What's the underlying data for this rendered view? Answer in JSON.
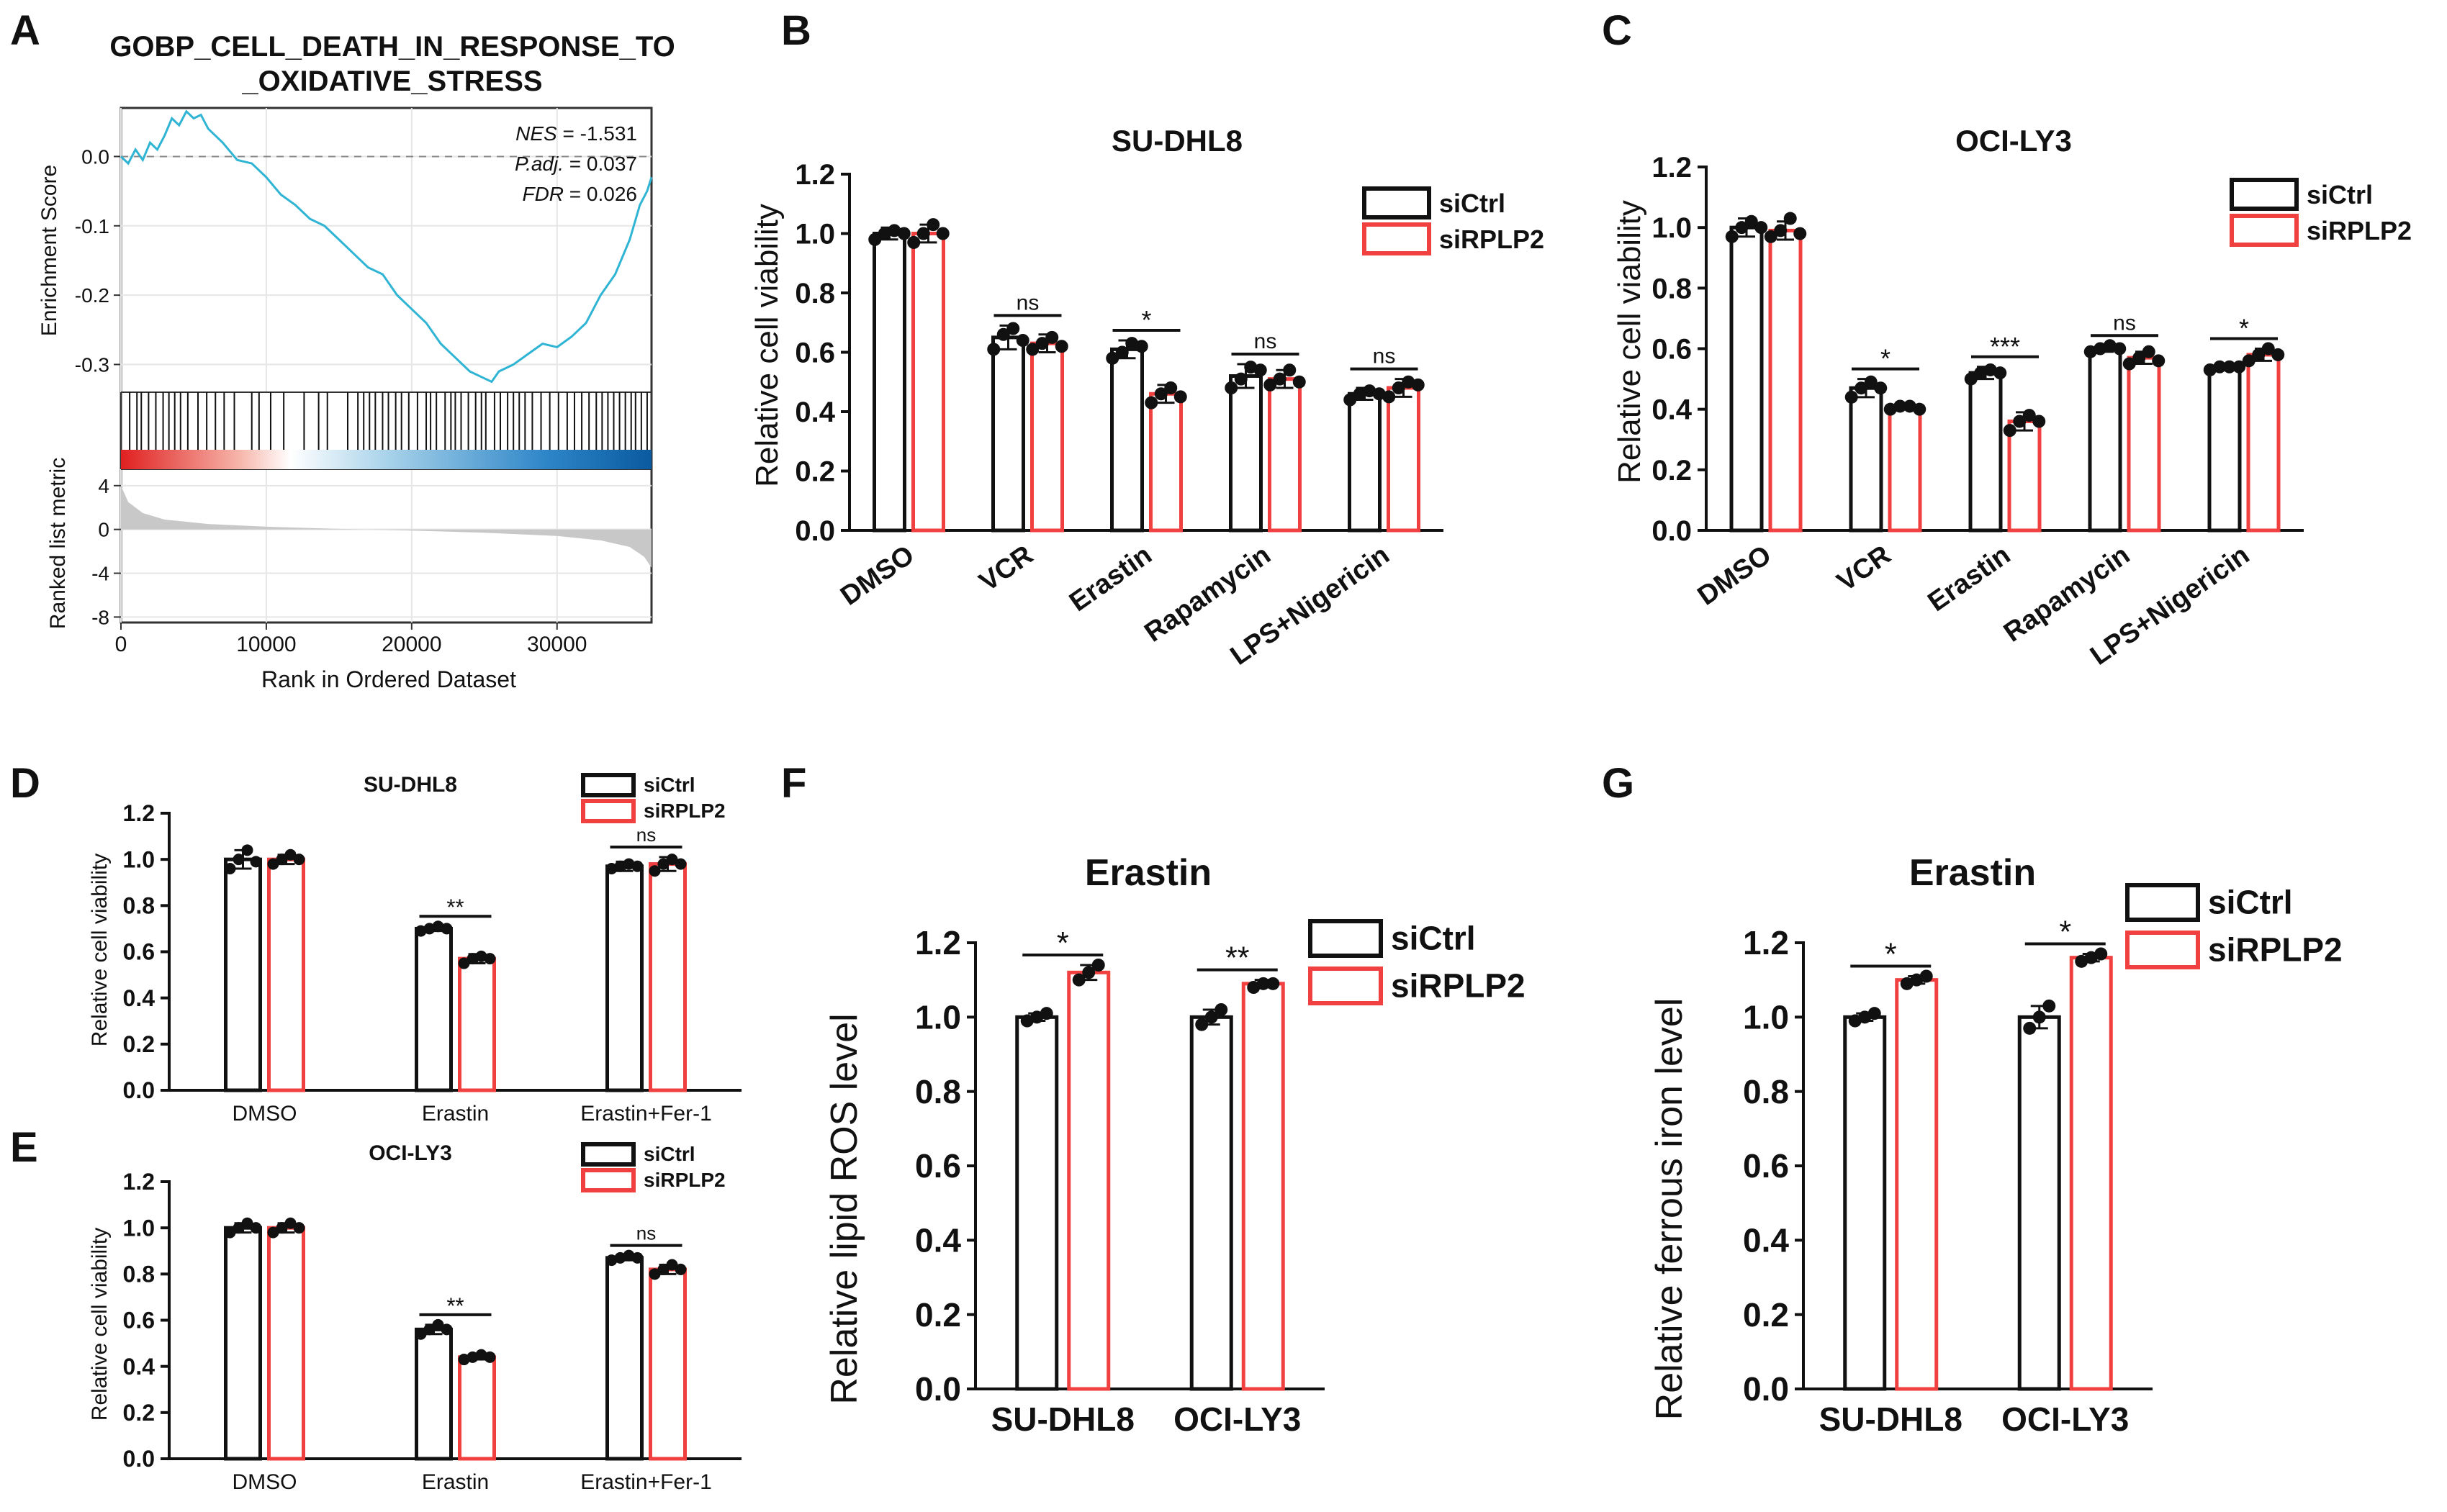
{
  "figure": {
    "panel_labels": [
      "A",
      "B",
      "C",
      "D",
      "E",
      "F",
      "G"
    ]
  },
  "chart_data": [
    {
      "panel": "A",
      "type": "line",
      "title": "GOBP_CELL_DEATH_IN_RESPONSE_TO _OXIDATIVE_STRESS",
      "title_lines": [
        "GOBP_CELL_DEATH_IN_RESPONSE_TO",
        "_OXIDATIVE_STRESS"
      ],
      "ylabel": "Enrichment Score",
      "ylabel_bottom": "Ranked list metric",
      "xlabel": "Rank in Ordered Dataset",
      "stats": [
        {
          "label": "NES",
          "value": "-1.531"
        },
        {
          "label": "P.adj.",
          "value": "0.037"
        },
        {
          "label": "FDR",
          "value": "0.026"
        }
      ],
      "es_yticks": [
        "0.0",
        "-0.1",
        "-0.2",
        "-0.3"
      ],
      "es_ylim": [
        -0.34,
        0.07
      ],
      "metric_yticks": [
        "4",
        "0",
        "-4",
        "-8"
      ],
      "metric_ylim": [
        -8.5,
        5.5
      ],
      "xticks": [
        "0",
        "10000",
        "20000",
        "30000"
      ],
      "xlim": [
        0,
        36500
      ],
      "running_es": {
        "x": [
          0,
          500,
          1000,
          1500,
          2000,
          2500,
          3000,
          3500,
          4000,
          4500,
          5000,
          5500,
          6000,
          7000,
          8000,
          9000,
          10000,
          11000,
          12000,
          13000,
          14000,
          15000,
          16000,
          17000,
          18000,
          19000,
          20000,
          21000,
          22000,
          23000,
          24000,
          25000,
          25500,
          26000,
          27000,
          28000,
          29000,
          30000,
          31000,
          32000,
          33000,
          34000,
          35000,
          35700,
          36200,
          36500
        ],
        "y": [
          0.0,
          -0.01,
          0.01,
          -0.005,
          0.02,
          0.01,
          0.03,
          0.055,
          0.045,
          0.065,
          0.055,
          0.06,
          0.04,
          0.02,
          -0.005,
          -0.01,
          -0.03,
          -0.055,
          -0.07,
          -0.09,
          -0.1,
          -0.12,
          -0.14,
          -0.16,
          -0.17,
          -0.2,
          -0.22,
          -0.24,
          -0.27,
          -0.29,
          -0.31,
          -0.32,
          -0.325,
          -0.31,
          -0.3,
          -0.285,
          -0.27,
          -0.275,
          -0.26,
          -0.24,
          -0.2,
          -0.17,
          -0.12,
          -0.07,
          -0.05,
          -0.03
        ]
      },
      "hit_positions": [
        600,
        1100,
        1400,
        1900,
        2400,
        2900,
        3300,
        3700,
        4100,
        4600,
        5300,
        5900,
        6500,
        7100,
        7800,
        9000,
        9500,
        10300,
        11200,
        12600,
        13600,
        14200,
        15600,
        16300,
        16700,
        17100,
        17500,
        18000,
        18400,
        18900,
        19300,
        19800,
        20400,
        21000,
        21300,
        21700,
        22300,
        22700,
        23000,
        23400,
        23900,
        24400,
        24800,
        25100,
        25700,
        26100,
        26600,
        27000,
        27400,
        27800,
        28300,
        28900,
        29500,
        30100,
        30700,
        31200,
        31700,
        32200,
        32700,
        33100,
        33500,
        33900,
        34300,
        34700,
        35100,
        35400,
        35800,
        36200
      ],
      "metric_curve": {
        "x": [
          0,
          500,
          1500,
          3000,
          6000,
          10000,
          15000,
          20000,
          25000,
          30000,
          33000,
          35000,
          36000,
          36500
        ],
        "y": [
          4.0,
          2.5,
          1.5,
          0.9,
          0.5,
          0.25,
          0.05,
          -0.1,
          -0.3,
          -0.6,
          -1.0,
          -1.6,
          -2.5,
          -3.5
        ]
      }
    },
    {
      "panel": "B",
      "type": "bar",
      "title": "SU-DHL8",
      "ylabel": "Relative cell viability",
      "ylim": [
        0,
        1.2
      ],
      "yticks": [
        "0.0",
        "0.2",
        "0.4",
        "0.6",
        "0.8",
        "1.0",
        "1.2"
      ],
      "categories": [
        "DMSO",
        "VCR",
        "Erastin",
        "Rapamycin",
        "LPS+Nigericin"
      ],
      "series": [
        {
          "name": "siCtrl",
          "color": "#111111",
          "values": [
            1.0,
            0.65,
            0.61,
            0.52,
            0.46
          ],
          "errors": [
            0.02,
            0.04,
            0.03,
            0.04,
            0.02
          ],
          "points": [
            [
              0.98,
              1.0,
              1.01,
              1.0
            ],
            [
              0.61,
              0.66,
              0.68,
              0.64
            ],
            [
              0.58,
              0.6,
              0.63,
              0.62
            ],
            [
              0.48,
              0.51,
              0.55,
              0.54
            ],
            [
              0.44,
              0.46,
              0.47,
              0.46
            ]
          ]
        },
        {
          "name": "siRPLP2",
          "color": "#f04040",
          "values": [
            1.0,
            0.63,
            0.46,
            0.51,
            0.48
          ],
          "errors": [
            0.03,
            0.03,
            0.03,
            0.03,
            0.03
          ],
          "points": [
            [
              0.97,
              1.0,
              1.03,
              1.0
            ],
            [
              0.61,
              0.63,
              0.65,
              0.62
            ],
            [
              0.43,
              0.46,
              0.48,
              0.45
            ],
            [
              0.49,
              0.51,
              0.54,
              0.5
            ],
            [
              0.45,
              0.48,
              0.5,
              0.49
            ]
          ]
        }
      ],
      "annotations": [
        "",
        "ns",
        "*",
        "ns",
        "ns"
      ]
    },
    {
      "panel": "C",
      "type": "bar",
      "title": "OCI-LY3",
      "ylabel": "Relative cell viability",
      "ylim": [
        0,
        1.2
      ],
      "yticks": [
        "0.0",
        "0.2",
        "0.4",
        "0.6",
        "0.8",
        "1.0",
        "1.2"
      ],
      "categories": [
        "DMSO",
        "VCR",
        "Erastin",
        "Rapamycin",
        "LPS+Nigericin"
      ],
      "series": [
        {
          "name": "siCtrl",
          "color": "#111111",
          "values": [
            1.0,
            0.47,
            0.52,
            0.6,
            0.54
          ],
          "errors": [
            0.03,
            0.03,
            0.02,
            0.01,
            0.01
          ],
          "points": [
            [
              0.97,
              1.0,
              1.02,
              1.0
            ],
            [
              0.44,
              0.47,
              0.49,
              0.47
            ],
            [
              0.5,
              0.52,
              0.53,
              0.52
            ],
            [
              0.59,
              0.6,
              0.61,
              0.6
            ],
            [
              0.53,
              0.54,
              0.54,
              0.54
            ]
          ]
        },
        {
          "name": "siRPLP2",
          "color": "#f04040",
          "values": [
            0.99,
            0.41,
            0.36,
            0.57,
            0.58
          ],
          "errors": [
            0.03,
            0.01,
            0.03,
            0.02,
            0.02
          ],
          "points": [
            [
              0.97,
              0.99,
              1.03,
              0.98
            ],
            [
              0.4,
              0.41,
              0.41,
              0.4
            ],
            [
              0.33,
              0.36,
              0.38,
              0.36
            ],
            [
              0.55,
              0.57,
              0.59,
              0.56
            ],
            [
              0.56,
              0.58,
              0.6,
              0.58
            ]
          ]
        }
      ],
      "annotations": [
        "",
        "*",
        "***",
        "ns",
        "*"
      ]
    },
    {
      "panel": "D",
      "type": "bar",
      "title": "SU-DHL8",
      "ylabel": "Relative cell viability",
      "ylim": [
        0,
        1.2
      ],
      "yticks": [
        "0.0",
        "0.2",
        "0.4",
        "0.6",
        "0.8",
        "1.0",
        "1.2"
      ],
      "categories": [
        "DMSO",
        "Erastin",
        "Erastin+Fer-1"
      ],
      "series": [
        {
          "name": "siCtrl",
          "color": "#111111",
          "values": [
            1.0,
            0.7,
            0.97
          ],
          "errors": [
            0.04,
            0.01,
            0.02
          ],
          "points": [
            [
              0.96,
              1.0,
              1.04,
              0.99
            ],
            [
              0.69,
              0.7,
              0.71,
              0.7
            ],
            [
              0.96,
              0.97,
              0.98,
              0.97
            ]
          ]
        },
        {
          "name": "siRPLP2",
          "color": "#f04040",
          "values": [
            1.0,
            0.57,
            0.98
          ],
          "errors": [
            0.02,
            0.02,
            0.03
          ],
          "points": [
            [
              0.98,
              1.0,
              1.02,
              1.0
            ],
            [
              0.55,
              0.57,
              0.58,
              0.57
            ],
            [
              0.95,
              0.98,
              1.0,
              0.98
            ]
          ]
        }
      ],
      "annotations": [
        "",
        "**",
        "ns"
      ]
    },
    {
      "panel": "E",
      "type": "bar",
      "title": "OCI-LY3",
      "ylabel": "Relative cell viability",
      "ylim": [
        0,
        1.2
      ],
      "yticks": [
        "0.0",
        "0.2",
        "0.4",
        "0.6",
        "0.8",
        "1.0",
        "1.2"
      ],
      "categories": [
        "DMSO",
        "Erastin",
        "Erastin+Fer-1"
      ],
      "series": [
        {
          "name": "siCtrl",
          "color": "#111111",
          "values": [
            1.0,
            0.56,
            0.87
          ],
          "errors": [
            0.02,
            0.02,
            0.01
          ],
          "points": [
            [
              0.98,
              1.0,
              1.02,
              1.0
            ],
            [
              0.54,
              0.56,
              0.58,
              0.56
            ],
            [
              0.86,
              0.87,
              0.88,
              0.87
            ]
          ]
        },
        {
          "name": "siRPLP2",
          "color": "#f04040",
          "values": [
            1.0,
            0.44,
            0.82
          ],
          "errors": [
            0.02,
            0.01,
            0.02
          ],
          "points": [
            [
              0.98,
              1.0,
              1.02,
              1.0
            ],
            [
              0.43,
              0.44,
              0.45,
              0.44
            ],
            [
              0.8,
              0.82,
              0.84,
              0.82
            ]
          ]
        }
      ],
      "annotations": [
        "",
        "**",
        "ns"
      ]
    },
    {
      "panel": "F",
      "type": "bar",
      "title": "Erastin",
      "ylabel": "Relative lipid ROS level",
      "ylim": [
        0,
        1.2
      ],
      "yticks": [
        "0.0",
        "0.2",
        "0.4",
        "0.6",
        "0.8",
        "1.0",
        "1.2"
      ],
      "categories": [
        "SU-DHL8",
        "OCI-LY3"
      ],
      "series": [
        {
          "name": "siCtrl",
          "color": "#111111",
          "values": [
            1.0,
            1.0
          ],
          "errors": [
            0.01,
            0.02
          ],
          "points": [
            [
              0.99,
              1.0,
              1.01
            ],
            [
              0.98,
              1.0,
              1.02
            ]
          ]
        },
        {
          "name": "siRPLP2",
          "color": "#f04040",
          "values": [
            1.12,
            1.09
          ],
          "errors": [
            0.02,
            0.01
          ],
          "points": [
            [
              1.1,
              1.12,
              1.14
            ],
            [
              1.08,
              1.09,
              1.09
            ]
          ]
        }
      ],
      "annotations": [
        "*",
        "**"
      ]
    },
    {
      "panel": "G",
      "type": "bar",
      "title": "Erastin",
      "ylabel": "Relative ferrous iron level",
      "ylim": [
        0,
        1.2
      ],
      "yticks": [
        "0.0",
        "0.2",
        "0.4",
        "0.6",
        "0.8",
        "1.0",
        "1.2"
      ],
      "categories": [
        "SU-DHL8",
        "OCI-LY3"
      ],
      "series": [
        {
          "name": "siCtrl",
          "color": "#111111",
          "values": [
            1.0,
            1.0
          ],
          "errors": [
            0.01,
            0.03
          ],
          "points": [
            [
              0.99,
              1.0,
              1.01
            ],
            [
              0.97,
              1.0,
              1.03
            ]
          ]
        },
        {
          "name": "siRPLP2",
          "color": "#f04040",
          "values": [
            1.1,
            1.16
          ],
          "errors": [
            0.01,
            0.01
          ],
          "points": [
            [
              1.09,
              1.1,
              1.11
            ],
            [
              1.15,
              1.16,
              1.17
            ]
          ]
        }
      ],
      "annotations": [
        "*",
        "*"
      ]
    }
  ]
}
